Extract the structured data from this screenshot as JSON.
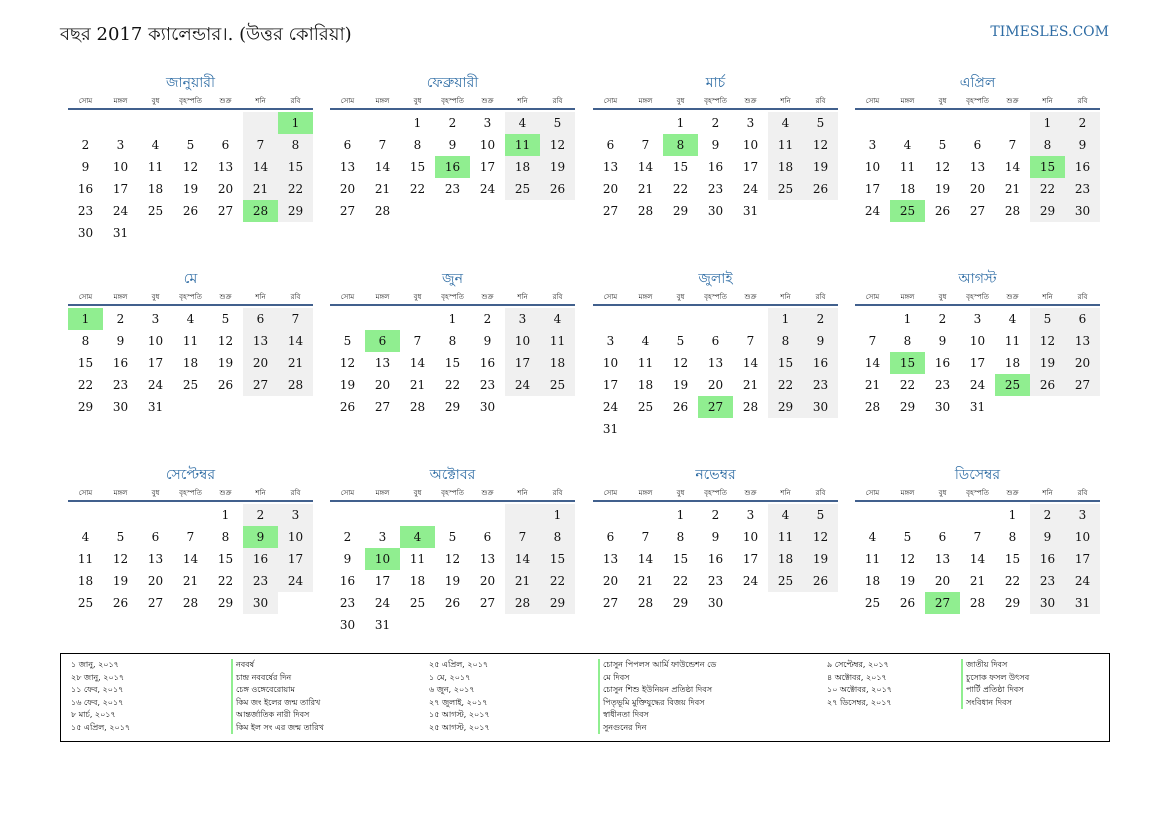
{
  "header": {
    "title": "বছর 2017 ক্যালেন্ডার।. (উত্তর কোরিয়া)",
    "site": "TIMESLES.COM"
  },
  "weekdays": [
    "সোম",
    "মঙ্গল",
    "বুধ",
    "বৃহস্পতি",
    "শুক্র",
    "শনি",
    "রবি"
  ],
  "months": [
    {
      "name": "জানুয়ারী",
      "offset": 6,
      "days": 31,
      "holidays": [
        1,
        28
      ]
    },
    {
      "name": "ফেব্রুয়ারী",
      "offset": 2,
      "days": 28,
      "holidays": [
        11,
        16
      ]
    },
    {
      "name": "মার্চ",
      "offset": 2,
      "days": 31,
      "holidays": [
        8
      ]
    },
    {
      "name": "এপ্রিল",
      "offset": 5,
      "days": 30,
      "holidays": [
        15,
        25
      ]
    },
    {
      "name": "মে",
      "offset": 0,
      "days": 31,
      "holidays": [
        1
      ]
    },
    {
      "name": "জুন",
      "offset": 3,
      "days": 30,
      "holidays": [
        6
      ]
    },
    {
      "name": "জুলাই",
      "offset": 5,
      "days": 31,
      "holidays": [
        27
      ]
    },
    {
      "name": "আগস্ট",
      "offset": 1,
      "days": 31,
      "holidays": [
        15,
        25
      ]
    },
    {
      "name": "সেপ্টেম্বর",
      "offset": 4,
      "days": 30,
      "holidays": [
        9
      ]
    },
    {
      "name": "অক্টোবর",
      "offset": 6,
      "days": 31,
      "holidays": [
        4,
        10
      ]
    },
    {
      "name": "নভেম্বর",
      "offset": 2,
      "days": 30,
      "holidays": []
    },
    {
      "name": "ডিসেম্বর",
      "offset": 4,
      "days": 31,
      "holidays": [
        27
      ]
    }
  ],
  "holiday_columns": [
    {
      "dates": [
        "১ জানু, ২০১৭",
        "২৮ জানু, ২০১৭",
        "১১ ফেব, ২০১৭",
        "১৬ ফেব, ২০১৭",
        "৮ মার্চ, ২০১৭",
        "১৫ এপ্রিল, ২০১৭"
      ],
      "names": [
        "নববর্ষ",
        "চান্দ্র নববর্ষের দিন",
        "চেঙ্গ ওঙ্গেবেরোয়াম",
        "কিম জং ইলের জন্ম তারিখ",
        "আন্তর্জাতিক নারী দিবস",
        "কিম ইল সং এর জন্ম তারিখ"
      ]
    },
    {
      "dates": [
        "২৫ এপ্রিল, ২০১৭",
        "১ মে, ২০১৭",
        "৬ জুন, ২০১৭",
        "২৭ জুলাই, ২০১৭",
        "১৫ আগস্ট, ২০১৭",
        "২৫ আগস্ট, ২০১৭"
      ],
      "names": [
        "চোসুন পিপলস আর্মি ফাউন্ডেশন ডে",
        "মে দিবস",
        "চোসুন শিশু ইউনিয়ন প্রতিষ্ঠা দিবস",
        "পিতৃভূমি মুক্তিযুদ্ধের বিজয় দিবস",
        "স্বাধীনতা দিবস",
        "সুনগুনের দিন"
      ]
    },
    {
      "dates": [
        "৯ সেপ্টেম্বর, ২০১৭",
        "৪ অক্টোবর, ২০১৭",
        "১০ অক্টোবর, ২০১৭",
        "২৭ ডিসেম্বর, ২০১৭"
      ],
      "names": [
        "জাতীয় দিবস",
        "চুসোক ফসল উৎসব",
        "পার্টি প্রতিষ্ঠা দিবস",
        "সংবিধান দিবস"
      ]
    }
  ]
}
